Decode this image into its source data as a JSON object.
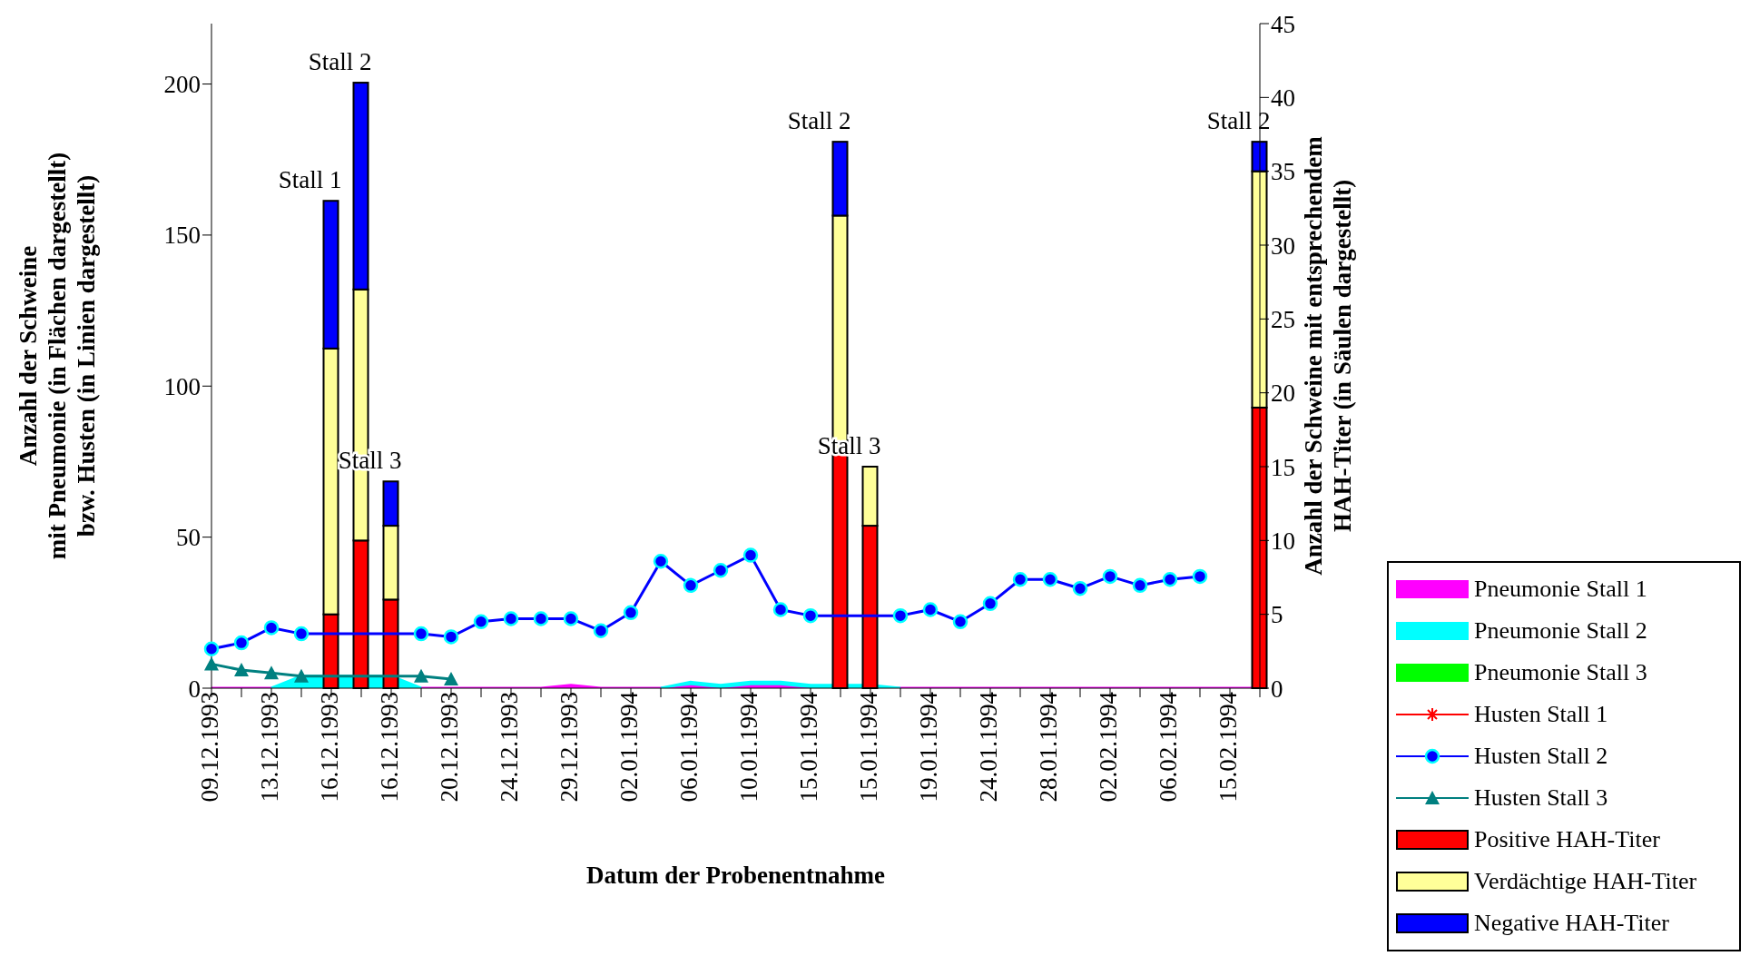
{
  "chart_data": {
    "type": "bar",
    "xlabel": "Datum der Probenentnahme",
    "ylabel": "Anzahl der Schweine\nmit Pneumonie (in Flächen dargestellt)\nbzw. Husten (in Linien dargestellt)",
    "y2label": "Anzahl der Schweine mit entsprechendem\nHAH-Titer (in Säulen dargestellt)",
    "categories": [
      "09.12.1993",
      null,
      "13.12.1993",
      null,
      "16.12.1993",
      null,
      "16.12.1993",
      null,
      "20.12.1993",
      null,
      "24.12.1993",
      null,
      "29.12.1993",
      null,
      "02.01.1994",
      null,
      "06.01.1994",
      null,
      "10.01.1994",
      null,
      "15.01.1994",
      null,
      "15.01.1994",
      null,
      "19.01.1994",
      null,
      "24.01.1994",
      null,
      "28.01.1994",
      null,
      "02.02.1994",
      null,
      "06.02.1994",
      null,
      "15.02.1994",
      null
    ],
    "series": [
      {
        "name": "Pneumonie Stall 1",
        "type": "area",
        "color": "#ff00ff",
        "values": [
          0,
          0,
          0,
          0,
          0,
          0,
          0,
          0,
          0,
          0,
          0,
          0,
          1,
          0,
          0,
          0,
          1,
          0,
          1,
          1,
          0,
          0,
          0,
          0,
          0,
          0,
          0,
          0,
          0,
          0,
          0,
          0,
          0,
          0,
          0,
          0
        ]
      },
      {
        "name": "Pneumonie Stall 2",
        "type": "area",
        "color": "#00ffff",
        "values": [
          null,
          null,
          0,
          4,
          4,
          4,
          4,
          0,
          null,
          null,
          null,
          null,
          null,
          null,
          null,
          0,
          1,
          1,
          1,
          1,
          1,
          1,
          1,
          0,
          null,
          null,
          null,
          null,
          null,
          null,
          null,
          null,
          null,
          null,
          null,
          null
        ]
      },
      {
        "name": "Pneumonie Stall 3",
        "type": "area",
        "color": "#00ff00",
        "values": [
          null,
          null,
          null,
          null,
          null,
          null,
          null,
          null,
          null,
          null,
          null,
          null,
          null,
          null,
          null,
          null,
          null,
          null,
          null,
          null,
          null,
          null,
          null,
          null,
          null,
          null,
          null,
          null,
          null,
          null,
          null,
          null,
          null,
          null,
          null,
          null
        ]
      },
      {
        "name": "Husten Stall 1",
        "type": "line",
        "color": "#ff0000",
        "marker": "star",
        "values": [
          null,
          null,
          null,
          null,
          null,
          null,
          null,
          null,
          null,
          null,
          null,
          null,
          null,
          null,
          null,
          null,
          null,
          null,
          null,
          null,
          null,
          null,
          null,
          null,
          null,
          null,
          null,
          null,
          null,
          null,
          null,
          null,
          null,
          null,
          null,
          null
        ]
      },
      {
        "name": "Husten Stall 2",
        "type": "line",
        "color": "#0000ff",
        "marker": "circle",
        "values": [
          13,
          15,
          20,
          18,
          null,
          null,
          null,
          18,
          17,
          22,
          23,
          23,
          23,
          19,
          25,
          42,
          34,
          39,
          44,
          26,
          24,
          null,
          null,
          24,
          26,
          22,
          28,
          36,
          36,
          33,
          37,
          34,
          36,
          37,
          null,
          null
        ]
      },
      {
        "name": "Husten Stall 3",
        "type": "line",
        "color": "#008080",
        "marker": "triangle",
        "values": [
          8,
          6,
          5,
          4,
          null,
          null,
          null,
          4,
          3,
          null,
          null,
          null,
          null,
          null,
          null,
          null,
          null,
          null,
          null,
          null,
          null,
          null,
          null,
          null,
          null,
          null,
          null,
          null,
          null,
          null,
          null,
          null,
          null,
          null,
          null,
          null
        ]
      },
      {
        "name": "Positive HAH-Titer",
        "axis": "y2",
        "color": "#ff0000",
        "values": [
          null,
          null,
          null,
          null,
          5,
          10,
          6,
          null,
          null,
          null,
          null,
          null,
          null,
          null,
          null,
          null,
          null,
          null,
          null,
          null,
          null,
          16,
          11,
          null,
          null,
          null,
          null,
          null,
          null,
          null,
          null,
          null,
          null,
          null,
          null,
          19
        ]
      },
      {
        "name": "Verdächtige HAH-Titer",
        "axis": "y2",
        "color": "#ffff99",
        "values": [
          null,
          null,
          null,
          null,
          18,
          17,
          5,
          null,
          null,
          null,
          null,
          null,
          null,
          null,
          null,
          null,
          null,
          null,
          null,
          null,
          null,
          16,
          4,
          null,
          null,
          null,
          null,
          null,
          null,
          null,
          null,
          null,
          null,
          null,
          null,
          16
        ]
      },
      {
        "name": "Negative HAH-Titer",
        "axis": "y2",
        "color": "#0000ff",
        "values": [
          null,
          null,
          null,
          null,
          10,
          14,
          3,
          null,
          null,
          null,
          null,
          null,
          null,
          null,
          null,
          null,
          null,
          null,
          null,
          null,
          null,
          5,
          0,
          null,
          null,
          null,
          null,
          null,
          null,
          null,
          null,
          null,
          null,
          null,
          null,
          2
        ],
        "value_labels": [
          null,
          null,
          null,
          null,
          "Stall 1",
          "Stall 2",
          "Stall 3",
          null,
          null,
          null,
          null,
          null,
          null,
          null,
          null,
          null,
          null,
          null,
          null,
          null,
          null,
          "Stall 2",
          "Stall 3",
          null,
          null,
          null,
          null,
          null,
          null,
          null,
          null,
          null,
          null,
          null,
          null,
          "Stall 2"
        ]
      }
    ],
    "stacked": true,
    "ylim": [
      0,
      220
    ],
    "yticks": [
      0,
      50,
      100,
      150,
      200
    ],
    "y2lim": [
      0,
      45
    ],
    "y2ticks": [
      0,
      5,
      10,
      15,
      20,
      25,
      30,
      35,
      40,
      45
    ],
    "grid": false,
    "legend": "bottom right"
  }
}
